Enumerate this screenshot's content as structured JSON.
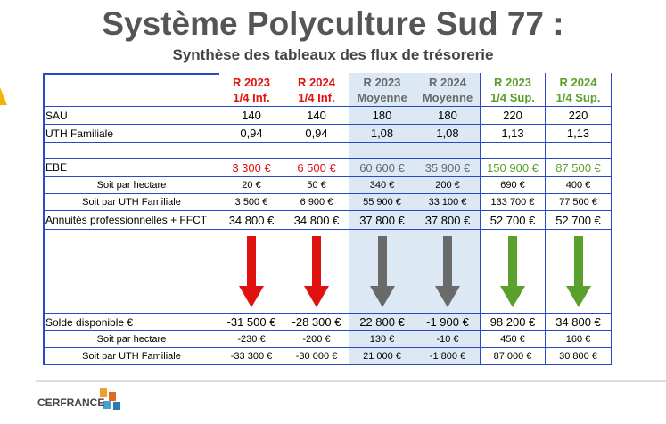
{
  "header": {
    "title": "Système Polyculture Sud 77 :",
    "subtitle": "Synthèse des tableaux des flux de trésorerie"
  },
  "table": {
    "columns": [
      {
        "line1": "R 2023",
        "line2": "1/4 Inf.",
        "color": "#e0120f"
      },
      {
        "line1": "R 2024",
        "line2": "1/4 Inf.",
        "color": "#e0120f"
      },
      {
        "line1": "R 2023",
        "line2": "Moyenne",
        "color": "#6a6a6a"
      },
      {
        "line1": "R 2024",
        "line2": "Moyenne",
        "color": "#6a6a6a"
      },
      {
        "line1": "R 2023",
        "line2": "1/4 Sup.",
        "color": "#5aa02c"
      },
      {
        "line1": "R 2024",
        "line2": "1/4 Sup.",
        "color": "#5aa02c"
      }
    ],
    "rows": [
      {
        "label": "SAU",
        "values": [
          "140",
          "140",
          "180",
          "180",
          "220",
          "220"
        ]
      },
      {
        "label": "UTH Familiale",
        "values": [
          "0,94",
          "0,94",
          "1,08",
          "1,08",
          "1,13",
          "1,13"
        ]
      },
      {
        "label": "EBE",
        "values": [
          "3 300 €",
          "6 500 €",
          "60 600 €",
          "35 900 €",
          "150 900 €",
          "87 500 €"
        ]
      },
      {
        "label": "Soit par hectare",
        "values": [
          "20 €",
          "50 €",
          "340 €",
          "200 €",
          "690 €",
          "400 €"
        ]
      },
      {
        "label": "Soit par UTH Familiale",
        "values": [
          "3 500 €",
          "6 900 €",
          "55 900 €",
          "33 100 €",
          "133 700 €",
          "77 500 €"
        ]
      },
      {
        "label": "Annuités professionnelles + FFCT",
        "values": [
          "34 800 €",
          "34 800 €",
          "37 800 €",
          "37 800 €",
          "52 700 €",
          "52 700 €"
        ]
      },
      {
        "label": "Solde disponible €",
        "values": [
          "-31 500 €",
          "-28 300 €",
          "22 800 €",
          "-1 900 €",
          "98 200 €",
          "34 800 €"
        ]
      },
      {
        "label": "Soit par hectare",
        "values": [
          "-230 €",
          "-200 €",
          "130 €",
          "-10 €",
          "450 €",
          "160 €"
        ]
      },
      {
        "label": "Soit par UTH Familiale",
        "values": [
          "-33 300 €",
          "-30 000 €",
          "21 000 €",
          "-1 800 €",
          "87 000 €",
          "30 800 €"
        ]
      }
    ]
  },
  "footer": {
    "logo": "CERFRANCE"
  }
}
